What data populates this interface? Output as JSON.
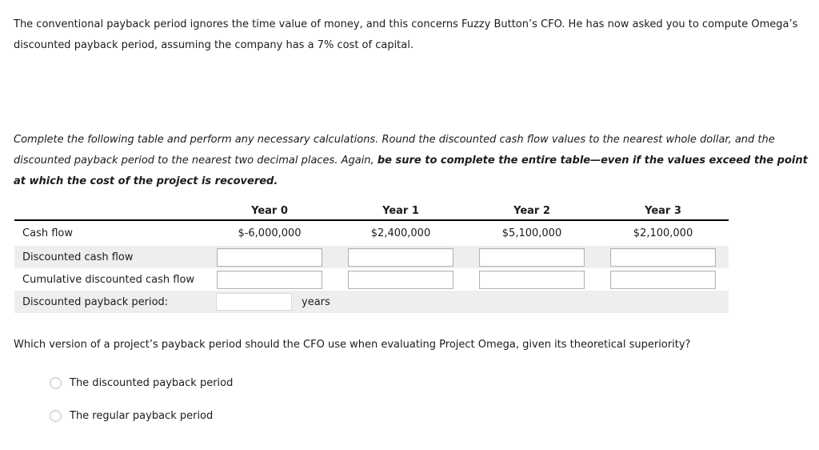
{
  "intro": {
    "line1": "The conventional payback period ignores the time value of money, and this concerns Fuzzy Button’s CFO. He has now asked you to compute Omega’s",
    "line2": "discounted payback period, assuming the company has a 7% cost of capital."
  },
  "instructions": {
    "line1": "Complete the following table and perform any necessary calculations. Round the discounted cash flow values to the nearest whole dollar, and the",
    "line2_normal": "discounted payback period to the nearest two decimal places. Again, ",
    "line2_bold": "be sure to complete the entire table—even if the values exceed the point",
    "line3_bold": "at which the cost of the project is recovered."
  },
  "table": {
    "headers": [
      "Year 0",
      "Year 1",
      "Year 2",
      "Year 3"
    ],
    "rows": {
      "cash_flow": {
        "label": "Cash flow",
        "values": [
          "$-6,000,000",
          "$2,400,000",
          "$5,100,000",
          "$2,100,000"
        ]
      },
      "discounted_cash_flow": {
        "label": "Discounted cash flow"
      },
      "cumulative_discounted_cash_flow": {
        "label": "Cumulative discounted cash flow"
      },
      "discounted_payback_period": {
        "label": "Discounted payback period:",
        "unit": "years"
      }
    }
  },
  "question": {
    "text": "Which version of a project’s payback period should the CFO use when evaluating Project Omega, given its theoretical superiority?",
    "options": [
      {
        "label": "The discounted payback period",
        "selected": false
      },
      {
        "label": "The regular payback period",
        "selected": false
      }
    ]
  },
  "colors": {
    "row_stripe": "#eeeeee",
    "input_border": "#b2b2b2",
    "input_border_light": "#d9d9d9",
    "rule": "#000000",
    "text": "#1c1c1c",
    "radio_border": "#c8c8c8"
  }
}
